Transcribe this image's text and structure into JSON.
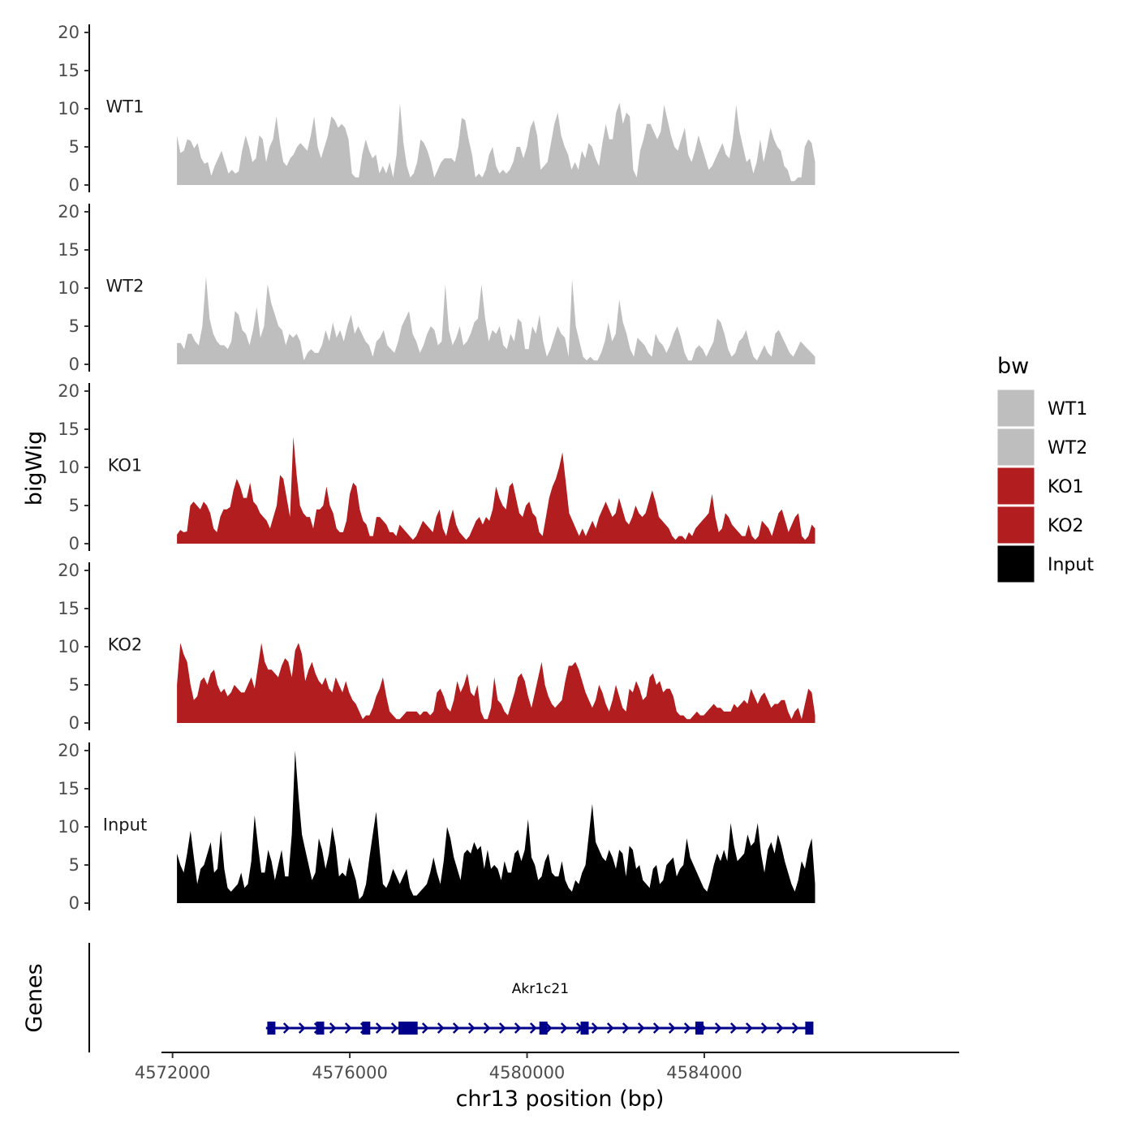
{
  "chart_data": {
    "type": "area",
    "chromosome": "chr13",
    "xlabel": "chr13 position (bp)",
    "ylabel": "bigWig",
    "xlim": [
      4571750,
      4589750
    ],
    "data_range": [
      4572100,
      4586500
    ],
    "x_ticks": [
      4572000,
      4576000,
      4580000,
      4584000
    ],
    "x_tick_labels": [
      "4572000",
      "4576000",
      "4580000",
      "4584000"
    ],
    "ylim": [
      0,
      20
    ],
    "y_ticks": [
      0,
      5,
      10,
      15,
      20
    ],
    "y_tick_labels": [
      "0",
      "5",
      "10",
      "15",
      "20"
    ],
    "legend": {
      "title": "bw",
      "position": "right",
      "entries": [
        {
          "label": "WT1",
          "color": "#bebebe"
        },
        {
          "label": "WT2",
          "color": "#bebebe"
        },
        {
          "label": "KO1",
          "color": "#b21e1f"
        },
        {
          "label": "KO2",
          "color": "#b21e1f"
        },
        {
          "label": "Input",
          "color": "#000000"
        }
      ]
    },
    "series": [
      {
        "name": "WT1",
        "color": "#bebebe",
        "values": [
          6.5,
          4.2,
          4.5,
          6.0,
          5.8,
          4.8,
          5.5,
          3.6,
          2.8,
          3.0,
          1.2,
          2.5,
          3.5,
          4.5,
          3.0,
          1.5,
          2.0,
          1.5,
          1.8,
          4.5,
          6.5,
          5.0,
          3.0,
          3.5,
          6.5,
          6.0,
          3.0,
          5.0,
          6.0,
          9.0,
          5.5,
          3.0,
          2.5,
          3.5,
          4.0,
          5.0,
          5.5,
          5.0,
          4.5,
          6.5,
          9.0,
          5.0,
          3.5,
          5.0,
          6.5,
          9.0,
          8.5,
          7.5,
          8.0,
          7.5,
          6.0,
          1.5,
          1.0,
          1.0,
          4.0,
          6.0,
          4.5,
          3.5,
          4.0,
          1.5,
          2.5,
          1.5,
          3.0,
          1.0,
          4.0,
          10.7,
          5.5,
          2.5,
          1.0,
          1.5,
          3.0,
          6.0,
          5.5,
          4.5,
          3.0,
          1.0,
          2.0,
          3.0,
          3.5,
          3.5,
          3.5,
          3.0,
          5.0,
          8.8,
          8.5,
          6.0,
          4.0,
          1.0,
          1.5,
          1.0,
          2.0,
          4.0,
          5.0,
          2.5,
          1.5,
          2.0,
          1.5,
          2.0,
          3.0,
          5.0,
          5.0,
          3.5,
          5.0,
          7.5,
          8.5,
          6.5,
          2.0,
          2.5,
          3.0,
          5.5,
          8.0,
          9.5,
          6.5,
          5.0,
          4.0,
          2.0,
          3.0,
          2.0,
          4.5,
          3.5,
          5.5,
          5.0,
          3.5,
          2.5,
          5.5,
          8.0,
          6.0,
          6.0,
          9.5,
          10.8,
          8.0,
          9.5,
          9.0,
          2.0,
          1.0,
          4.5,
          6.0,
          8.0,
          8.0,
          7.0,
          6.0,
          7.0,
          10.5,
          8.5,
          6.5,
          5.0,
          4.5,
          6.0,
          7.5,
          4.0,
          3.0,
          4.5,
          6.5,
          5.0,
          3.5,
          2.0,
          2.5,
          3.5,
          4.5,
          5.5,
          4.0,
          3.5,
          6.0,
          10.5,
          7.0,
          5.0,
          3.0,
          3.5,
          1.5,
          3.0,
          6.0,
          3.0,
          5.0,
          7.5,
          6.0,
          5.0,
          4.5,
          2.5,
          2.0,
          0.5,
          0.5,
          1.0,
          1.0,
          5.0,
          6.0,
          5.5,
          3.0
        ]
      },
      {
        "name": "WT2",
        "color": "#bebebe",
        "values": [
          2.8,
          2.8,
          2.0,
          4.0,
          4.0,
          3.0,
          2.5,
          5.0,
          11.5,
          6.0,
          4.0,
          3.0,
          2.5,
          2.5,
          2.0,
          3.0,
          7.0,
          6.5,
          4.5,
          4.0,
          2.5,
          4.5,
          7.5,
          3.5,
          5.0,
          10.5,
          8.0,
          6.5,
          5.0,
          4.5,
          2.5,
          4.0,
          3.5,
          4.0,
          3.0,
          0.5,
          1.5,
          2.0,
          1.5,
          1.5,
          2.5,
          4.5,
          3.0,
          5.5,
          3.5,
          4.5,
          3.0,
          5.0,
          6.5,
          4.0,
          5.0,
          4.0,
          3.0,
          2.5,
          1.0,
          3.0,
          3.5,
          4.5,
          2.5,
          2.0,
          1.5,
          3.0,
          5.0,
          6.0,
          7.0,
          4.0,
          3.0,
          1.5,
          2.5,
          4.0,
          5.0,
          4.5,
          2.5,
          3.0,
          10.5,
          4.5,
          2.5,
          3.5,
          5.0,
          2.5,
          3.0,
          4.0,
          5.5,
          6.0,
          10.5,
          6.0,
          3.0,
          4.5,
          4.0,
          5.0,
          2.5,
          2.0,
          4.0,
          3.0,
          6.0,
          5.5,
          2.0,
          2.0,
          5.0,
          4.0,
          6.5,
          3.0,
          1.0,
          2.0,
          3.5,
          5.0,
          4.0,
          3.5,
          1.0,
          11.2,
          5.0,
          3.0,
          1.0,
          0.5,
          1.0,
          0.5,
          0.5,
          1.5,
          3.0,
          5.5,
          3.0,
          4.0,
          8.5,
          5.5,
          4.0,
          2.0,
          1.0,
          3.5,
          3.0,
          2.5,
          1.5,
          1.0,
          4.0,
          3.0,
          2.5,
          1.5,
          2.5,
          4.0,
          5.0,
          3.5,
          1.5,
          0.5,
          0.5,
          2.0,
          2.5,
          2.0,
          1.0,
          2.0,
          3.0,
          6.0,
          5.5,
          4.0,
          2.0,
          1.0,
          1.5,
          3.0,
          3.5,
          4.5,
          2.5,
          1.0,
          0.5,
          1.5,
          2.5,
          1.5,
          1.0,
          4.0,
          4.5,
          3.5,
          2.5,
          1.5,
          1.0,
          2.0,
          3.0,
          2.5,
          2.0,
          1.5,
          1.0
        ]
      },
      {
        "name": "KO1",
        "color": "#b21e1f",
        "values": [
          1.2,
          1.8,
          1.5,
          1.6,
          5.0,
          5.5,
          5.0,
          4.5,
          5.5,
          5.0,
          4.0,
          2.0,
          1.5,
          3.5,
          4.5,
          4.5,
          4.8,
          7.0,
          8.5,
          7.5,
          6.0,
          6.0,
          8.0,
          5.5,
          5.0,
          4.0,
          3.5,
          3.0,
          2.0,
          3.5,
          5.0,
          9.0,
          8.5,
          6.0,
          3.5,
          14.0,
          9.0,
          5.0,
          4.0,
          3.5,
          3.5,
          2.0,
          4.5,
          4.5,
          5.0,
          7.5,
          5.0,
          4.0,
          2.0,
          1.5,
          1.5,
          3.0,
          6.5,
          8.0,
          7.5,
          4.5,
          3.0,
          2.5,
          1.0,
          1.0,
          3.5,
          3.5,
          3.0,
          2.5,
          1.5,
          1.5,
          1.0,
          2.5,
          2.0,
          1.5,
          1.0,
          0.5,
          1.0,
          2.0,
          3.0,
          2.5,
          2.0,
          1.5,
          3.5,
          4.5,
          2.0,
          1.0,
          3.0,
          4.5,
          2.5,
          1.5,
          1.0,
          0.5,
          1.0,
          2.0,
          3.0,
          3.5,
          2.5,
          3.5,
          3.0,
          4.5,
          7.5,
          6.0,
          5.0,
          4.5,
          7.5,
          8.0,
          6.0,
          4.0,
          3.5,
          5.0,
          5.5,
          4.0,
          3.5,
          1.5,
          1.0,
          3.5,
          6.0,
          7.5,
          8.5,
          10.0,
          12.0,
          8.0,
          4.0,
          3.0,
          2.0,
          1.0,
          2.0,
          1.0,
          2.0,
          3.0,
          2.0,
          3.5,
          4.5,
          5.5,
          4.5,
          3.5,
          4.0,
          6.0,
          4.5,
          3.0,
          2.5,
          3.5,
          5.0,
          4.0,
          3.5,
          4.0,
          5.5,
          7.0,
          5.5,
          3.5,
          3.0,
          2.5,
          2.0,
          1.0,
          0.5,
          1.0,
          1.0,
          0.5,
          1.5,
          1.0,
          2.0,
          2.5,
          3.0,
          3.5,
          4.0,
          6.5,
          3.5,
          1.5,
          2.0,
          4.0,
          3.5,
          2.5,
          2.0,
          1.5,
          1.0,
          1.0,
          2.5,
          1.0,
          0.5,
          1.0,
          3.0,
          2.5,
          2.0,
          1.0,
          2.5,
          4.0,
          4.5,
          3.0,
          1.5,
          2.5,
          3.5,
          4.0,
          1.0,
          0.5,
          1.0,
          2.5,
          2.0
        ]
      },
      {
        "name": "KO2",
        "color": "#b21e1f",
        "values": [
          5.0,
          10.5,
          9.0,
          8.0,
          5.0,
          3.0,
          3.5,
          5.5,
          6.0,
          5.0,
          6.5,
          7.0,
          5.0,
          4.0,
          4.5,
          3.5,
          4.0,
          5.0,
          4.5,
          4.0,
          4.0,
          5.0,
          6.0,
          4.5,
          7.5,
          10.5,
          8.0,
          7.0,
          7.0,
          6.5,
          6.0,
          7.5,
          8.5,
          8.0,
          6.0,
          9.5,
          10.5,
          9.0,
          5.5,
          7.0,
          8.0,
          6.5,
          5.5,
          5.0,
          6.0,
          4.5,
          4.0,
          6.0,
          5.0,
          4.0,
          5.5,
          4.0,
          3.0,
          2.5,
          1.5,
          0.5,
          1.0,
          1.0,
          2.0,
          3.5,
          4.5,
          6.0,
          3.5,
          1.5,
          1.0,
          0.5,
          0.5,
          1.0,
          1.5,
          1.5,
          1.5,
          1.5,
          1.0,
          1.5,
          1.5,
          1.0,
          1.5,
          4.0,
          4.5,
          3.5,
          2.0,
          1.5,
          3.0,
          5.5,
          4.0,
          5.0,
          6.5,
          4.0,
          3.5,
          5.0,
          1.5,
          0.5,
          0.5,
          2.0,
          6.0,
          3.0,
          2.5,
          1.5,
          1.0,
          2.5,
          4.0,
          6.0,
          6.5,
          5.5,
          3.5,
          2.0,
          4.0,
          6.0,
          8.0,
          5.0,
          3.5,
          2.5,
          2.0,
          2.5,
          3.0,
          5.5,
          7.5,
          7.5,
          8.0,
          7.0,
          5.5,
          4.0,
          3.0,
          2.0,
          3.0,
          5.0,
          4.0,
          2.5,
          1.5,
          3.0,
          5.0,
          3.5,
          2.0,
          1.5,
          4.5,
          4.0,
          5.5,
          4.5,
          3.0,
          3.5,
          6.0,
          6.5,
          5.0,
          5.5,
          4.0,
          4.5,
          4.5,
          3.5,
          1.5,
          1.0,
          1.0,
          0.5,
          0.5,
          1.0,
          1.5,
          1.0,
          1.0,
          1.5,
          2.0,
          2.5,
          2.0,
          2.0,
          1.5,
          1.5,
          1.5,
          2.5,
          2.0,
          2.5,
          3.0,
          2.5,
          4.5,
          3.5,
          2.5,
          3.5,
          4.0,
          3.0,
          2.0,
          2.5,
          2.5,
          3.0,
          3.0,
          1.5,
          0.5,
          1.5,
          2.0,
          0.5,
          2.5,
          4.5,
          4.0,
          1.0
        ]
      },
      {
        "name": "Input",
        "color": "#000000",
        "values": [
          6.5,
          5.0,
          4.0,
          6.5,
          9.5,
          6.0,
          2.5,
          4.5,
          5.0,
          6.5,
          8.0,
          4.0,
          4.5,
          9.5,
          4.5,
          2.0,
          1.5,
          2.0,
          2.5,
          4.0,
          2.0,
          2.5,
          5.5,
          11.5,
          7.5,
          4.0,
          4.0,
          7.0,
          5.5,
          3.0,
          5.0,
          7.0,
          3.5,
          3.5,
          9.0,
          20.0,
          14.0,
          9.0,
          7.0,
          5.0,
          3.0,
          4.0,
          8.5,
          7.0,
          4.5,
          6.5,
          10.0,
          7.5,
          3.5,
          4.0,
          3.5,
          6.0,
          4.5,
          3.0,
          0.5,
          1.0,
          2.5,
          6.0,
          9.0,
          12.0,
          7.0,
          2.5,
          2.0,
          3.0,
          4.5,
          3.5,
          2.5,
          3.5,
          4.5,
          2.0,
          1.0,
          1.0,
          1.5,
          2.0,
          2.5,
          4.0,
          6.0,
          4.0,
          2.5,
          5.5,
          10.0,
          8.5,
          6.0,
          4.5,
          3.0,
          6.5,
          7.0,
          6.5,
          8.0,
          7.0,
          7.5,
          4.5,
          7.0,
          4.5,
          5.0,
          4.5,
          3.0,
          5.5,
          4.0,
          4.0,
          6.5,
          7.0,
          5.5,
          7.0,
          11.0,
          6.0,
          5.0,
          3.0,
          3.5,
          5.5,
          6.5,
          4.0,
          3.5,
          3.5,
          5.5,
          3.0,
          2.0,
          1.5,
          3.0,
          2.5,
          4.0,
          5.0,
          9.0,
          13.0,
          8.0,
          7.0,
          6.0,
          5.5,
          7.0,
          6.0,
          4.5,
          7.0,
          6.5,
          3.5,
          7.5,
          7.0,
          4.5,
          5.0,
          3.0,
          2.5,
          2.0,
          4.5,
          5.0,
          2.5,
          3.0,
          5.0,
          5.5,
          6.0,
          3.5,
          4.5,
          5.0,
          8.5,
          6.0,
          5.0,
          4.0,
          3.0,
          2.0,
          1.5,
          3.0,
          5.0,
          6.5,
          5.5,
          7.0,
          5.5,
          10.5,
          7.5,
          5.5,
          6.0,
          6.5,
          9.0,
          7.5,
          8.0,
          10.5,
          6.5,
          4.0,
          7.0,
          8.0,
          6.5,
          9.0,
          7.5,
          5.5,
          4.0,
          2.5,
          1.5,
          3.0,
          5.5,
          4.5,
          7.0,
          8.5,
          2.5
        ]
      }
    ],
    "gene_track": {
      "label": "Genes",
      "gene": {
        "name": "Akr1c21",
        "start": 4574200,
        "end": 4586400,
        "strand": "+",
        "color": "#00008b",
        "exons": [
          4574230,
          4575330,
          4576370,
          4577190,
          4577280,
          4577330,
          4577440,
          4580370,
          4581300,
          4583890,
          4586370
        ]
      }
    }
  }
}
